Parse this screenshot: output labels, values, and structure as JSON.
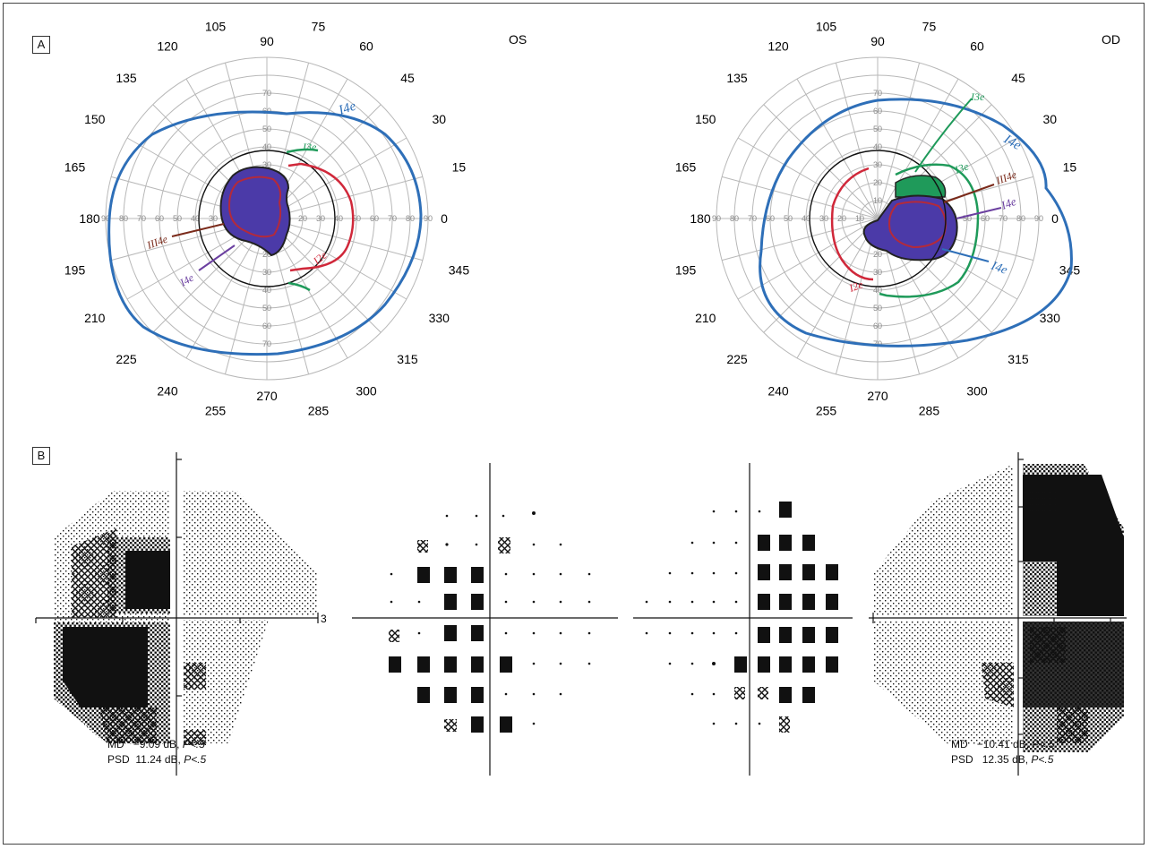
{
  "panels": {
    "a_label": "A",
    "b_label": "B"
  },
  "goldmann": {
    "left": {
      "eye_label": "OS"
    },
    "right": {
      "eye_label": "OD"
    },
    "meridian_labels": [
      "0",
      "15",
      "30",
      "45",
      "60",
      "75",
      "90",
      "105",
      "120",
      "135",
      "150",
      "165",
      "180",
      "195",
      "210",
      "225",
      "240",
      "255",
      "270",
      "285",
      "300",
      "315",
      "330",
      "345"
    ],
    "ring_labels": [
      "10",
      "20",
      "30",
      "40",
      "50",
      "60",
      "70",
      "80",
      "90"
    ],
    "isopter_labels": {
      "left": [
        "I4e",
        "I3e",
        "I2e",
        "III4e",
        "I4e"
      ],
      "right": [
        "I3e",
        "I3e",
        "III4e",
        "I4e",
        "I4e",
        "I4e",
        "I2e"
      ]
    }
  },
  "perimetry": {
    "axis_end_label": "3",
    "left_stats": {
      "md_label": "MD",
      "md_value": "−9.09 dB,",
      "md_p": "P<.5",
      "psd_label": "PSD",
      "psd_value": "11.24 dB,",
      "psd_p": "P<.5"
    },
    "right_stats": {
      "md_label": "MD",
      "md_value": "−10.41 dB,",
      "md_p": "P<.5",
      "psd_label": "PSD",
      "psd_value": "12.35 dB,",
      "psd_p": "P<.5"
    }
  },
  "colors": {
    "isopter_blue": "#2e6fb8",
    "isopter_green": "#1f9a5a",
    "isopter_red": "#d0283a",
    "isopter_brown": "#7a2a1a",
    "isopter_purple": "#6b3fa0",
    "scotoma_fill": "#4b3aa8",
    "scotoma_outline": "#b42a3a",
    "grid": "#b8b8b8",
    "grayscale_dark": "#111111"
  }
}
